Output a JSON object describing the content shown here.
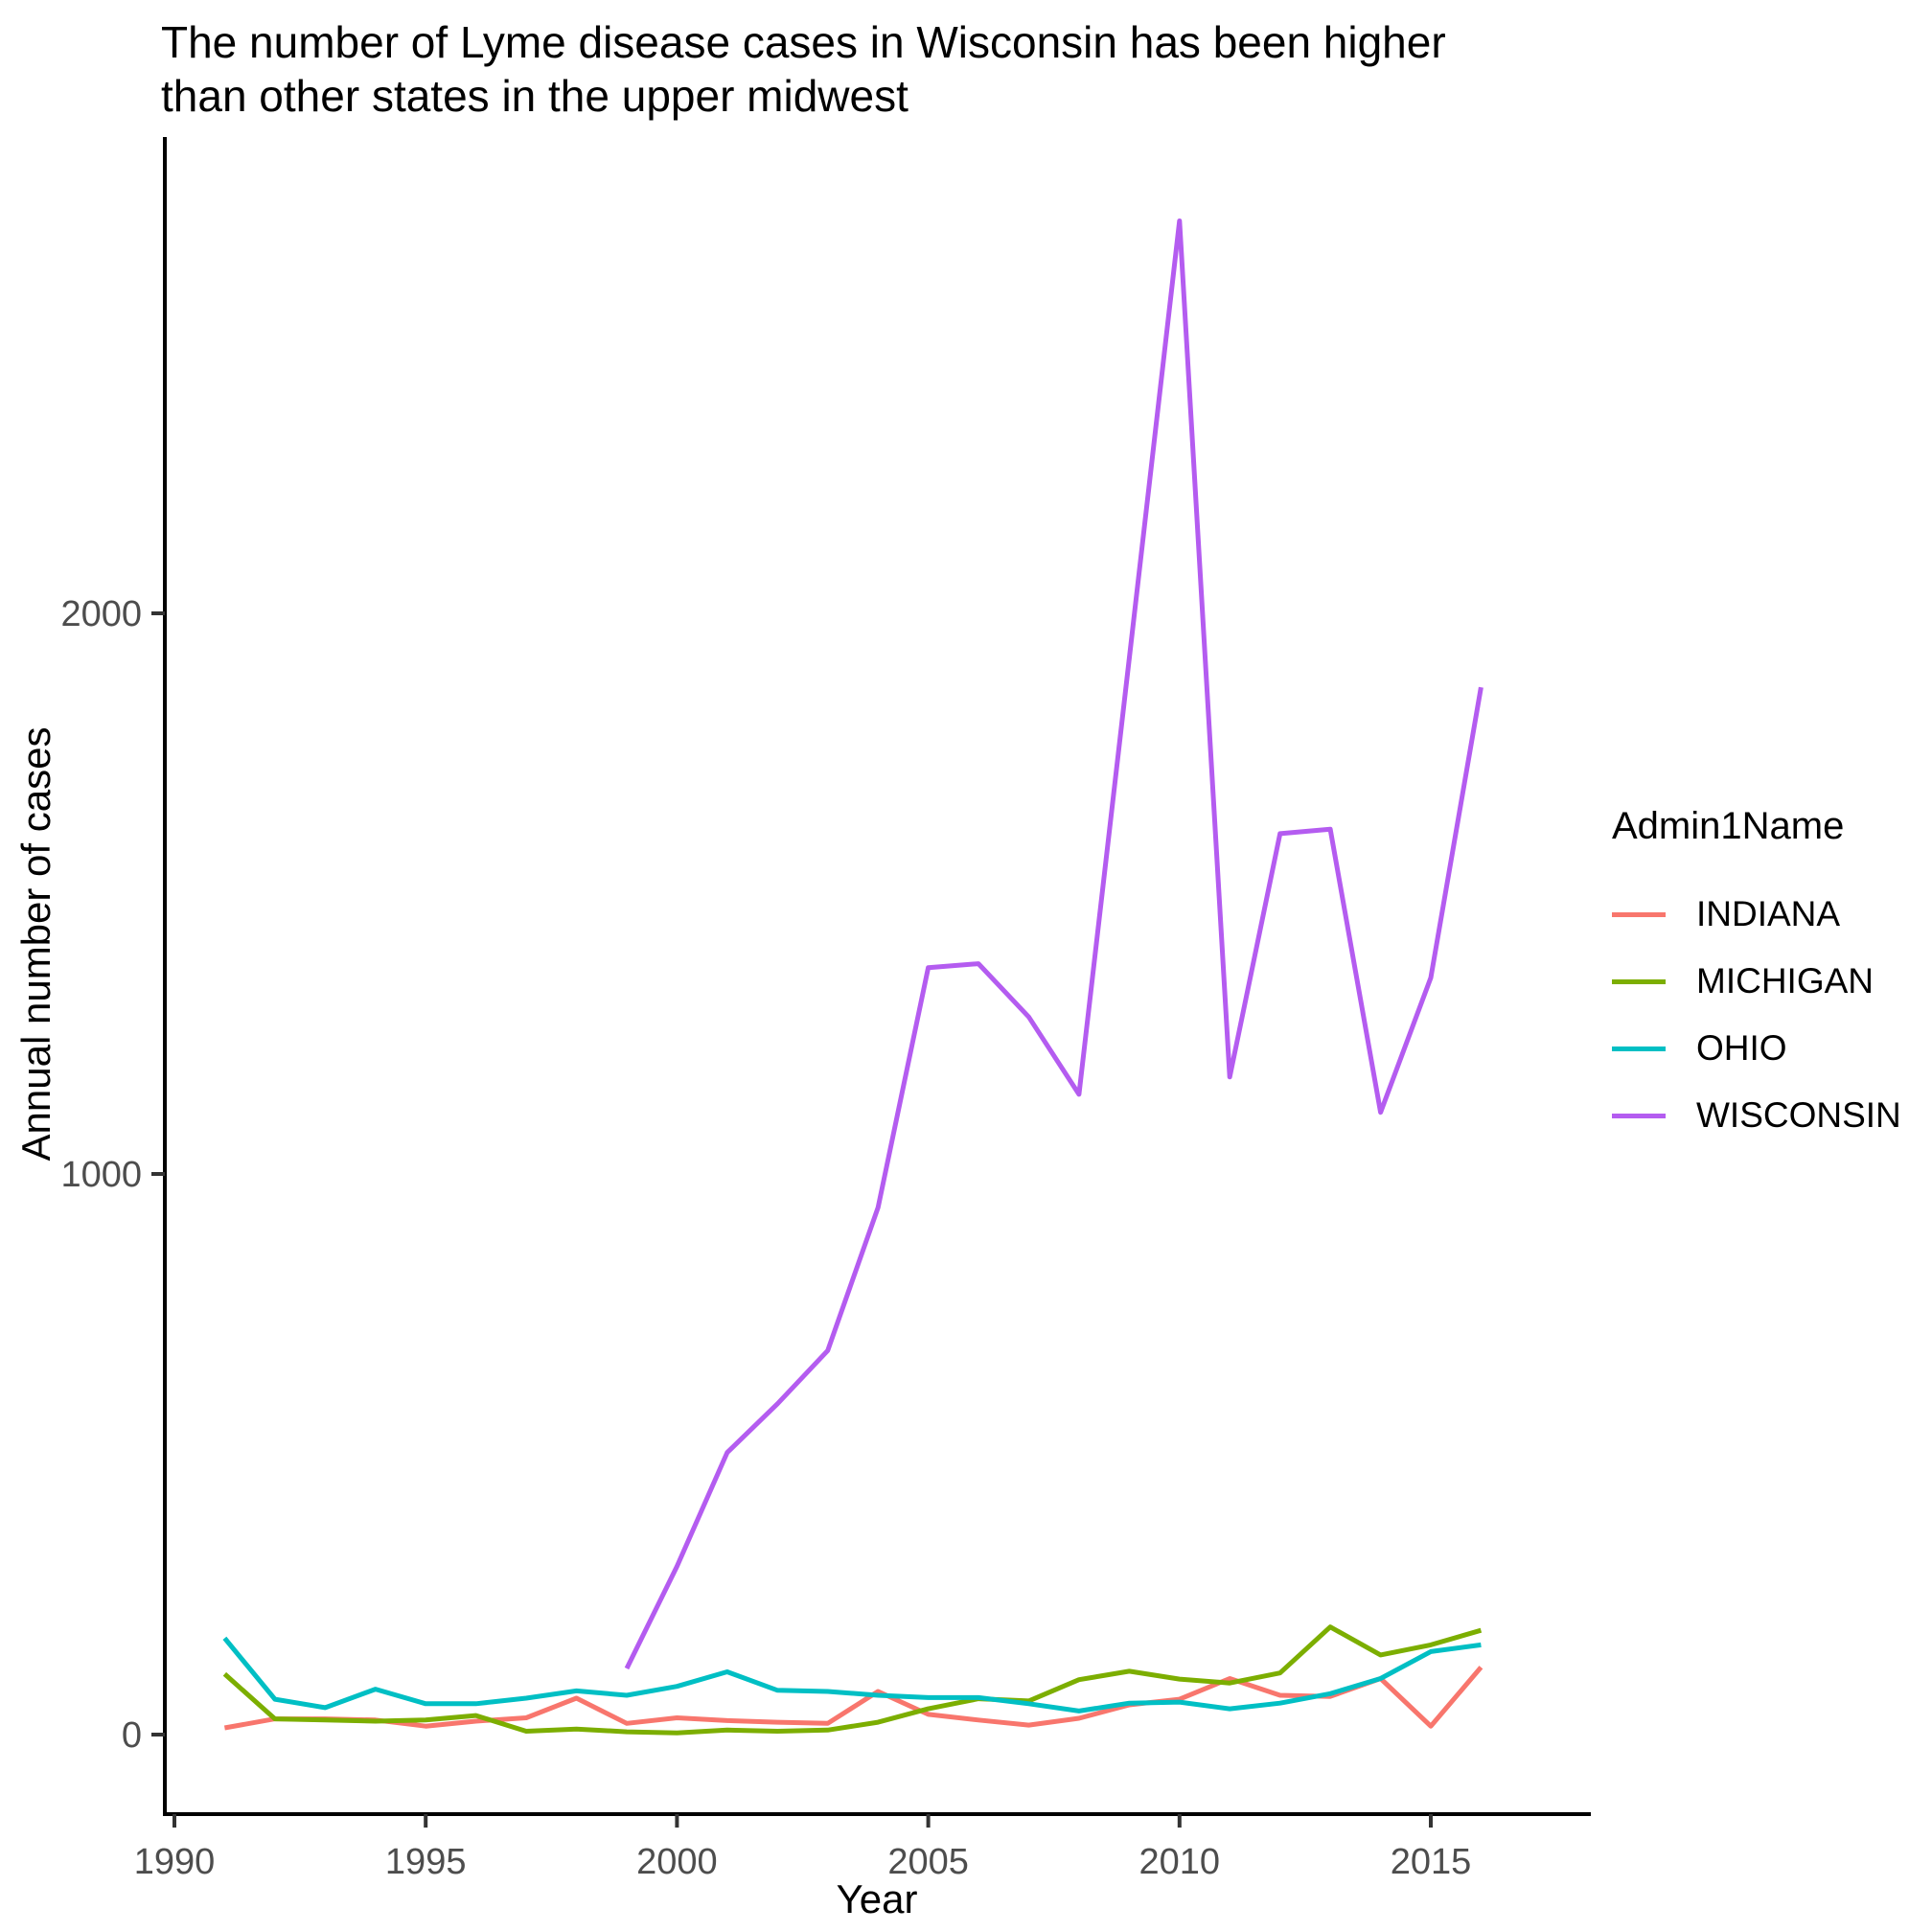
{
  "chart_data": {
    "type": "line",
    "title": "The number of Lyme disease cases in Wisconsin has been higher\nthan other states in the upper midwest",
    "xlabel": "Year",
    "ylabel": "Annual number of cases",
    "legend_title": "Admin1Name",
    "legend_position": "right",
    "grid": false,
    "x": [
      1991,
      1992,
      1993,
      1994,
      1995,
      1996,
      1997,
      1998,
      1999,
      2000,
      2001,
      2002,
      2003,
      2004,
      2005,
      2006,
      2007,
      2008,
      2009,
      2010,
      2011,
      2012,
      2013,
      2014,
      2015,
      2016
    ],
    "x_ticks": [
      1990,
      1995,
      2000,
      2005,
      2010,
      2015
    ],
    "y_ticks": [
      0,
      1000,
      2000
    ],
    "xlim": [
      1989.8,
      2018.1
    ],
    "ylim": [
      0,
      2850
    ],
    "series": [
      {
        "name": "INDIANA",
        "color": "#F8766D",
        "values": [
          12,
          28,
          28,
          26,
          15,
          24,
          30,
          65,
          20,
          30,
          25,
          22,
          20,
          77,
          36,
          26,
          17,
          29,
          53,
          63,
          100,
          70,
          68,
          100,
          15,
          120
        ]
      },
      {
        "name": "MICHIGAN",
        "color": "#7CAE00",
        "values": [
          108,
          28,
          26,
          24,
          26,
          34,
          6,
          10,
          5,
          3,
          8,
          6,
          8,
          22,
          46,
          64,
          60,
          98,
          113,
          99,
          92,
          110,
          192,
          142,
          160,
          186
        ]
      },
      {
        "name": "OHIO",
        "color": "#00BFC4",
        "values": [
          172,
          63,
          48,
          81,
          55,
          55,
          65,
          78,
          70,
          86,
          112,
          79,
          77,
          70,
          66,
          66,
          55,
          42,
          56,
          58,
          46,
          56,
          73,
          100,
          148,
          160
        ]
      },
      {
        "name": "WISCONSIN",
        "color": "#B45CF0",
        "values": [
          null,
          null,
          null,
          null,
          null,
          null,
          null,
          null,
          118,
          300,
          503,
          590,
          685,
          940,
          1368,
          1375,
          1280,
          1142,
          1920,
          2700,
          1173,
          1607,
          1615,
          1110,
          1350,
          1868
        ]
      }
    ],
    "axis": {
      "tick_label_color": "#4d4d4d",
      "line_color": "#000000"
    }
  }
}
